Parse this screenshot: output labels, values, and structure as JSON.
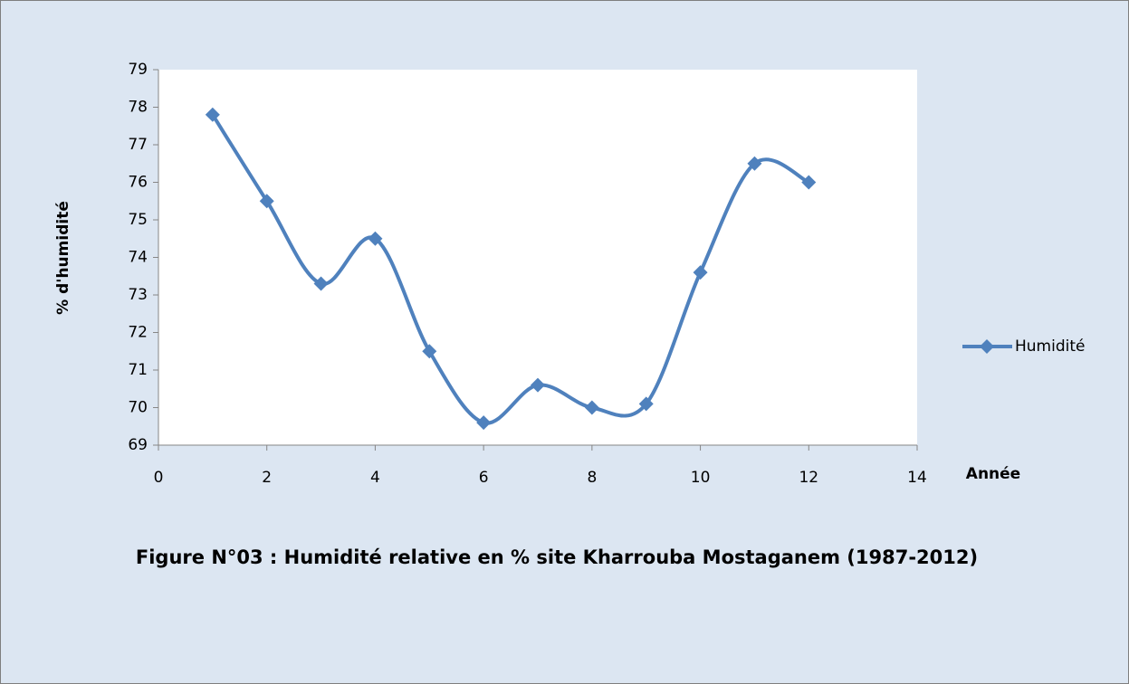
{
  "chart_data": {
    "type": "line",
    "title": "Figure N°03 : Humidité relative en %  site Kharrouba Mostaganem  (1987-2012)",
    "x_label": "Année",
    "y_label": "% d'humidité",
    "x": [
      1,
      2,
      3,
      4,
      5,
      6,
      7,
      8,
      9,
      10,
      11,
      12
    ],
    "series": [
      {
        "name": "Humidité",
        "color": "#4f81bd",
        "values": [
          77.8,
          75.5,
          73.3,
          74.5,
          71.5,
          69.6,
          70.6,
          70.0,
          70.1,
          73.6,
          76.5,
          76.0
        ]
      }
    ],
    "xlim": [
      0,
      14
    ],
    "xticks": [
      0,
      2,
      4,
      6,
      8,
      10,
      12,
      14
    ],
    "ylim": [
      69,
      79
    ],
    "yticks": [
      69,
      70,
      71,
      72,
      73,
      74,
      75,
      76,
      77,
      78,
      79
    ],
    "smooth": true,
    "grid": false,
    "legend": "right"
  }
}
